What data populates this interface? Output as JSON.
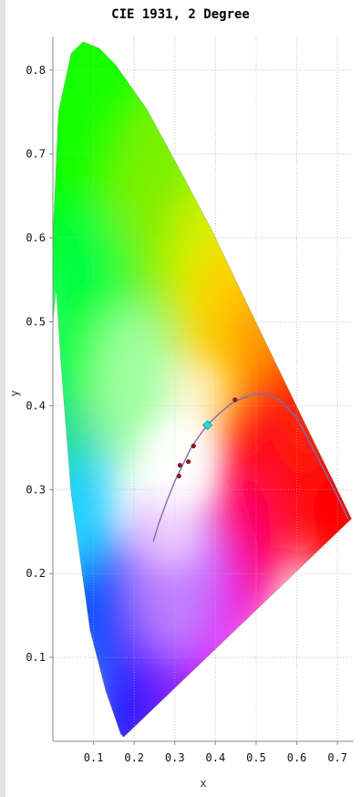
{
  "chart_data": {
    "type": "scatter",
    "title": "CIE 1931, 2 Degree",
    "xlabel": "x",
    "ylabel": "y",
    "xlim": [
      0.0,
      0.74
    ],
    "ylim": [
      0.0,
      0.84
    ],
    "grid": true,
    "x_ticks": [
      0.1,
      0.2,
      0.3,
      0.4,
      0.5,
      0.6,
      0.7
    ],
    "y_ticks": [
      0.1,
      0.2,
      0.3,
      0.4,
      0.5,
      0.6,
      0.7,
      0.8
    ],
    "x_tick_labels": [
      "0.1",
      "0.2",
      "0.3",
      "0.4",
      "0.5",
      "0.6",
      "0.7"
    ],
    "y_tick_labels": [
      "0.1",
      "0.2",
      "0.3",
      "0.4",
      "0.5",
      "0.6",
      "0.7",
      "0.8"
    ],
    "spectral_locus": [
      [
        0.7347,
        0.2653
      ],
      [
        0.72,
        0.28
      ],
      [
        0.6915,
        0.3083
      ],
      [
        0.627,
        0.372
      ],
      [
        0.575,
        0.424
      ],
      [
        0.5125,
        0.4866
      ],
      [
        0.45,
        0.549
      ],
      [
        0.39,
        0.61
      ],
      [
        0.3,
        0.692
      ],
      [
        0.23,
        0.754
      ],
      [
        0.1547,
        0.8059
      ],
      [
        0.114,
        0.826
      ],
      [
        0.0743,
        0.8338
      ],
      [
        0.045,
        0.82
      ],
      [
        0.0139,
        0.7502
      ],
      [
        0.0,
        0.6
      ],
      [
        0.0,
        0.5
      ],
      [
        0.0082,
        0.5384
      ],
      [
        0.02,
        0.45
      ],
      [
        0.045,
        0.295
      ],
      [
        0.0913,
        0.1327
      ],
      [
        0.13,
        0.06
      ],
      [
        0.1666,
        0.0089
      ],
      [
        0.1741,
        0.005
      ]
    ],
    "planckian_locus": [
      [
        0.726,
        0.265
      ],
      [
        0.7,
        0.292
      ],
      [
        0.6,
        0.386
      ],
      [
        0.56,
        0.406
      ],
      [
        0.53,
        0.413
      ],
      [
        0.5,
        0.414
      ],
      [
        0.47,
        0.41
      ],
      [
        0.44,
        0.403
      ],
      [
        0.41,
        0.391
      ],
      [
        0.38,
        0.377
      ],
      [
        0.36,
        0.364
      ],
      [
        0.34,
        0.35
      ],
      [
        0.32,
        0.33
      ],
      [
        0.3,
        0.31
      ],
      [
        0.28,
        0.286
      ],
      [
        0.26,
        0.259
      ],
      [
        0.247,
        0.238
      ]
    ],
    "points": [
      {
        "x": 0.448,
        "y": 0.407,
        "color": "#8b1a1a"
      },
      {
        "x": 0.346,
        "y": 0.352,
        "color": "#8b1a1a"
      },
      {
        "x": 0.3333,
        "y": 0.3333,
        "color": "#8b1a1a"
      },
      {
        "x": 0.3101,
        "y": 0.3162,
        "color": "#8b1a1a"
      },
      {
        "x": 0.3127,
        "y": 0.329,
        "color": "#8b1a1a"
      }
    ],
    "marker": {
      "x": 0.3805,
      "y": 0.3768,
      "color": "#2ad6d6"
    },
    "locus_color": "#7b6fb0"
  }
}
